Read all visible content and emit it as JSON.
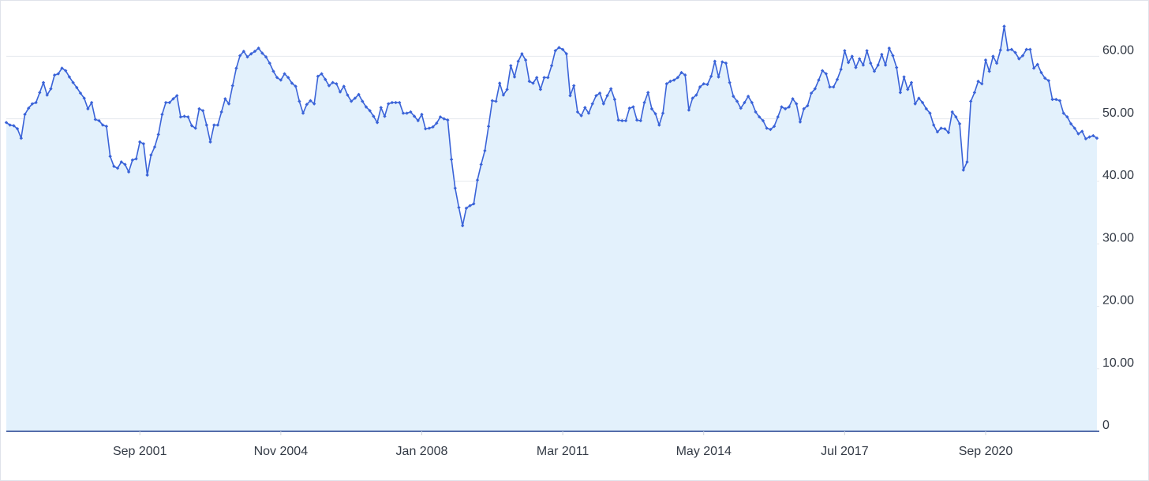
{
  "chart_data": {
    "type": "area",
    "x": [
      "1998-09",
      "1998-10",
      "1998-11",
      "1998-12",
      "1999-01",
      "1999-02",
      "1999-03",
      "1999-04",
      "1999-05",
      "1999-06",
      "1999-07",
      "1999-08",
      "1999-09",
      "1999-10",
      "1999-11",
      "1999-12",
      "2000-01",
      "2000-02",
      "2000-03",
      "2000-04",
      "2000-05",
      "2000-06",
      "2000-07",
      "2000-08",
      "2000-09",
      "2000-10",
      "2000-11",
      "2000-12",
      "2001-01",
      "2001-02",
      "2001-03",
      "2001-04",
      "2001-05",
      "2001-06",
      "2001-07",
      "2001-08",
      "2001-09",
      "2001-10",
      "2001-11",
      "2001-12",
      "2002-01",
      "2002-02",
      "2002-03",
      "2002-04",
      "2002-05",
      "2002-06",
      "2002-07",
      "2002-08",
      "2002-09",
      "2002-10",
      "2002-11",
      "2002-12",
      "2003-01",
      "2003-02",
      "2003-03",
      "2003-04",
      "2003-05",
      "2003-06",
      "2003-07",
      "2003-08",
      "2003-09",
      "2003-10",
      "2003-11",
      "2003-12",
      "2004-01",
      "2004-02",
      "2004-03",
      "2004-04",
      "2004-05",
      "2004-06",
      "2004-07",
      "2004-08",
      "2004-09",
      "2004-10",
      "2004-11",
      "2004-12",
      "2005-01",
      "2005-02",
      "2005-03",
      "2005-04",
      "2005-05",
      "2005-06",
      "2005-07",
      "2005-08",
      "2005-09",
      "2005-10",
      "2005-11",
      "2005-12",
      "2006-01",
      "2006-02",
      "2006-03",
      "2006-04",
      "2006-05",
      "2006-06",
      "2006-07",
      "2006-08",
      "2006-09",
      "2006-10",
      "2006-11",
      "2006-12",
      "2007-01",
      "2007-02",
      "2007-03",
      "2007-04",
      "2007-05",
      "2007-06",
      "2007-07",
      "2007-08",
      "2007-09",
      "2007-10",
      "2007-11",
      "2007-12",
      "2008-01",
      "2008-02",
      "2008-03",
      "2008-04",
      "2008-05",
      "2008-06",
      "2008-07",
      "2008-08",
      "2008-09",
      "2008-10",
      "2008-11",
      "2008-12",
      "2009-01",
      "2009-02",
      "2009-03",
      "2009-04",
      "2009-05",
      "2009-06",
      "2009-07",
      "2009-08",
      "2009-09",
      "2009-10",
      "2009-11",
      "2009-12",
      "2010-01",
      "2010-02",
      "2010-03",
      "2010-04",
      "2010-05",
      "2010-06",
      "2010-07",
      "2010-08",
      "2010-09",
      "2010-10",
      "2010-11",
      "2010-12",
      "2011-01",
      "2011-02",
      "2011-03",
      "2011-04",
      "2011-05",
      "2011-06",
      "2011-07",
      "2011-08",
      "2011-09",
      "2011-10",
      "2011-11",
      "2011-12",
      "2012-01",
      "2012-02",
      "2012-03",
      "2012-04",
      "2012-05",
      "2012-06",
      "2012-07",
      "2012-08",
      "2012-09",
      "2012-10",
      "2012-11",
      "2012-12",
      "2013-01",
      "2013-02",
      "2013-03",
      "2013-04",
      "2013-05",
      "2013-06",
      "2013-07",
      "2013-08",
      "2013-09",
      "2013-10",
      "2013-11",
      "2013-12",
      "2014-01",
      "2014-02",
      "2014-03",
      "2014-04",
      "2014-05",
      "2014-06",
      "2014-07",
      "2014-08",
      "2014-09",
      "2014-10",
      "2014-11",
      "2014-12",
      "2015-01",
      "2015-02",
      "2015-03",
      "2015-04",
      "2015-05",
      "2015-06",
      "2015-07",
      "2015-08",
      "2015-09",
      "2015-10",
      "2015-11",
      "2015-12",
      "2016-01",
      "2016-02",
      "2016-03",
      "2016-04",
      "2016-05",
      "2016-06",
      "2016-07",
      "2016-08",
      "2016-09",
      "2016-10",
      "2016-11",
      "2016-12",
      "2017-01",
      "2017-02",
      "2017-03",
      "2017-04",
      "2017-05",
      "2017-06",
      "2017-07",
      "2017-08",
      "2017-09",
      "2017-10",
      "2017-11",
      "2017-12",
      "2018-01",
      "2018-02",
      "2018-03",
      "2018-04",
      "2018-05",
      "2018-06",
      "2018-07",
      "2018-08",
      "2018-09",
      "2018-10",
      "2018-11",
      "2018-12",
      "2019-01",
      "2019-02",
      "2019-03",
      "2019-04",
      "2019-05",
      "2019-06",
      "2019-07",
      "2019-08",
      "2019-09",
      "2019-10",
      "2019-11",
      "2019-12",
      "2020-01",
      "2020-02",
      "2020-03",
      "2020-04",
      "2020-05",
      "2020-06",
      "2020-07",
      "2020-08",
      "2020-09",
      "2020-10",
      "2020-11",
      "2020-12",
      "2021-01",
      "2021-02",
      "2021-03",
      "2021-04",
      "2021-05",
      "2021-06",
      "2021-07",
      "2021-08",
      "2021-09",
      "2021-10",
      "2021-11",
      "2021-12",
      "2022-01",
      "2022-02",
      "2022-03",
      "2022-04",
      "2022-05",
      "2022-06",
      "2022-07",
      "2022-08",
      "2022-09",
      "2022-10",
      "2022-11",
      "2022-12",
      "2023-01",
      "2023-02",
      "2023-03"
    ],
    "values": [
      49.4,
      49.0,
      48.9,
      48.4,
      46.9,
      50.7,
      51.7,
      52.4,
      52.6,
      54.2,
      55.8,
      53.8,
      54.8,
      57.0,
      57.2,
      58.1,
      57.7,
      56.7,
      55.8,
      55.0,
      54.1,
      53.3,
      51.6,
      52.6,
      49.9,
      49.7,
      49.0,
      48.8,
      44.0,
      42.4,
      42.1,
      43.1,
      42.7,
      41.5,
      43.4,
      43.6,
      46.3,
      46.0,
      41.0,
      44.2,
      45.5,
      47.5,
      50.7,
      52.6,
      52.6,
      53.2,
      53.7,
      50.3,
      50.4,
      50.3,
      48.9,
      48.5,
      51.6,
      51.3,
      49.0,
      46.3,
      49.0,
      49.0,
      51.1,
      53.2,
      52.4,
      55.3,
      58.1,
      60.1,
      60.8,
      59.9,
      60.4,
      60.8,
      61.3,
      60.5,
      59.9,
      58.9,
      57.6,
      56.6,
      56.2,
      57.2,
      56.6,
      55.7,
      55.2,
      52.8,
      50.9,
      52.3,
      52.9,
      52.4,
      56.8,
      57.2,
      56.3,
      55.3,
      55.8,
      55.6,
      54.3,
      55.2,
      53.8,
      52.8,
      53.3,
      53.9,
      52.8,
      51.9,
      51.3,
      50.4,
      49.4,
      51.8,
      50.4,
      52.4,
      52.6,
      52.6,
      52.6,
      50.9,
      50.9,
      51.1,
      50.4,
      49.7,
      50.7,
      48.4,
      48.5,
      48.7,
      49.3,
      50.3,
      50.0,
      49.8,
      43.5,
      38.9,
      35.8,
      32.9,
      35.7,
      36.1,
      36.4,
      40.2,
      42.7,
      44.9,
      48.8,
      52.9,
      52.8,
      55.7,
      53.8,
      54.7,
      58.5,
      56.7,
      59.2,
      60.4,
      59.4,
      56.0,
      55.7,
      56.6,
      54.7,
      56.6,
      56.6,
      58.5,
      60.9,
      61.4,
      61.1,
      60.4,
      53.7,
      55.3,
      51.1,
      50.5,
      51.8,
      50.9,
      52.4,
      53.7,
      54.1,
      52.4,
      53.7,
      54.8,
      53.1,
      49.8,
      49.7,
      49.7,
      51.7,
      51.9,
      49.8,
      49.7,
      52.6,
      54.2,
      51.6,
      50.8,
      49.0,
      50.9,
      55.6,
      56.0,
      56.2,
      56.6,
      57.4,
      57.0,
      51.4,
      53.3,
      53.8,
      55.1,
      55.6,
      55.5,
      56.8,
      59.2,
      56.7,
      59.1,
      58.9,
      55.8,
      53.6,
      52.8,
      51.7,
      52.6,
      53.6,
      52.6,
      51.1,
      50.3,
      49.7,
      48.5,
      48.3,
      48.8,
      50.3,
      51.9,
      51.6,
      51.9,
      53.2,
      52.4,
      49.5,
      51.6,
      52.1,
      54.1,
      54.8,
      56.2,
      57.7,
      57.2,
      55.1,
      55.1,
      56.3,
      57.9,
      60.9,
      59.0,
      60.0,
      58.2,
      59.6,
      58.6,
      60.9,
      58.9,
      57.6,
      58.6,
      60.3,
      58.6,
      61.3,
      60.1,
      58.2,
      54.2,
      56.7,
      54.7,
      55.8,
      52.4,
      53.3,
      52.6,
      51.6,
      50.9,
      49.0,
      47.9,
      48.5,
      48.4,
      47.8,
      51.1,
      50.3,
      49.2,
      41.8,
      43.1,
      52.8,
      54.2,
      56.0,
      55.6,
      59.4,
      57.6,
      60.0,
      58.9,
      61.0,
      64.8,
      61.0,
      61.1,
      60.6,
      59.6,
      60.1,
      61.1,
      61.1,
      58.1,
      58.7,
      57.4,
      56.5,
      56.1,
      53.1,
      53.1,
      52.9,
      50.9,
      50.3,
      49.2,
      48.5,
      47.6,
      48.0,
      46.8,
      47.1,
      47.3,
      46.9
    ],
    "color": "#3a63d8",
    "fill": "#e3f1fc",
    "grid": true,
    "xlim": [
      "1998-09",
      "2023-03"
    ],
    "xticks": [
      {
        "value": "2001-09",
        "label": "Sep 2001"
      },
      {
        "value": "2004-11",
        "label": "Nov 2004"
      },
      {
        "value": "2008-01",
        "label": "Jan 2008"
      },
      {
        "value": "2011-03",
        "label": "Mar 2011"
      },
      {
        "value": "2014-05",
        "label": "May 2014"
      },
      {
        "value": "2017-07",
        "label": "Jul 2017"
      },
      {
        "value": "2020-09",
        "label": "Sep 2020"
      }
    ],
    "ylim": [
      0,
      68
    ],
    "yticks": [
      0,
      {
        "value": 10,
        "label": "10.00"
      },
      {
        "value": 20,
        "label": "20.00"
      },
      {
        "value": 30,
        "label": "30.00"
      },
      {
        "value": 40,
        "label": "40.00"
      },
      {
        "value": 50,
        "label": "50.00"
      },
      {
        "value": 60,
        "label": "60.00"
      }
    ]
  }
}
